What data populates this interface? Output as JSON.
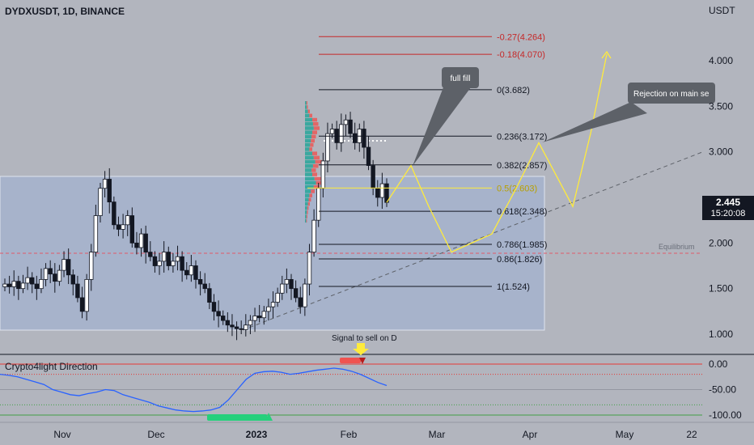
{
  "header": {
    "symbol": "DYDXUSDT, 1D, BINANCE",
    "currency": "USDT"
  },
  "price_label": {
    "price": "2.445",
    "countdown": "15:20:08"
  },
  "colors": {
    "bull": "#26a69a",
    "bear": "#131722",
    "fib_line": "#131722",
    "fib_ext": "#c62828",
    "fib_mid": "#ffeb3b",
    "projection": "#ffeb3b",
    "range_box": "#9fb0d6",
    "osc_line": "#2962ff"
  },
  "indicator": {
    "title": "Crypto4light Direction",
    "ticks": [
      "0.00",
      "-50.00",
      "-100.00"
    ]
  },
  "annotations": {
    "full_fill": "full fill",
    "rejection": "Rejection on main se",
    "signal": "Signal to sell on D",
    "equilibrium": "Equilibrium"
  },
  "chart_data": {
    "type": "candlestick",
    "y_axis_ticks": [
      "4.000",
      "3.500",
      "3.000",
      "2.000",
      "1.500",
      "1.000"
    ],
    "y_axis_values": [
      4.0,
      3.5,
      3.0,
      2.0,
      1.5,
      1.0
    ],
    "ylim": [
      0.95,
      4.4
    ],
    "x_axis_ticks": [
      "Nov",
      "Dec",
      "2023",
      "Feb",
      "Mar",
      "Apr",
      "May",
      "22"
    ],
    "fib_levels": [
      {
        "label": "-0.27(4.264)",
        "value": 4.264,
        "kind": "ext"
      },
      {
        "label": "-0.18(4.070)",
        "value": 4.07,
        "kind": "ext"
      },
      {
        "label": "0(3.682)",
        "value": 3.682,
        "kind": "main"
      },
      {
        "label": "0.236(3.172)",
        "value": 3.172,
        "kind": "main"
      },
      {
        "label": "0.382(2.857)",
        "value": 2.857,
        "kind": "main"
      },
      {
        "label": "0.5(2.603)",
        "value": 2.603,
        "kind": "mid"
      },
      {
        "label": "0.618(2.348)",
        "value": 2.348,
        "kind": "main"
      },
      {
        "label": "0.786(1.985)",
        "value": 1.985,
        "kind": "main"
      },
      {
        "label": "0.86(1.826)",
        "value": 1.826,
        "kind": "main"
      },
      {
        "label": "1(1.524)",
        "value": 1.524,
        "kind": "main"
      }
    ],
    "closes": [
      1.55,
      1.52,
      1.58,
      1.5,
      1.56,
      1.62,
      1.55,
      1.5,
      1.6,
      1.72,
      1.66,
      1.58,
      1.7,
      1.82,
      1.65,
      1.55,
      1.4,
      1.25,
      1.6,
      1.9,
      2.3,
      2.6,
      2.7,
      2.45,
      2.2,
      2.15,
      2.2,
      2.3,
      2.0,
      1.95,
      2.1,
      1.9,
      1.85,
      1.75,
      1.8,
      1.9,
      1.75,
      1.8,
      1.85,
      1.7,
      1.65,
      1.75,
      1.6,
      1.55,
      1.5,
      1.35,
      1.25,
      1.2,
      1.15,
      1.1,
      1.08,
      1.06,
      1.05,
      1.1,
      1.15,
      1.2,
      1.18,
      1.25,
      1.3,
      1.35,
      1.45,
      1.55,
      1.6,
      1.5,
      1.4,
      1.3,
      1.55,
      1.9,
      2.25,
      2.6,
      2.9,
      3.2,
      3.25,
      3.1,
      3.3,
      3.35,
      3.2,
      3.1,
      3.25,
      3.05,
      2.85,
      2.6,
      2.5,
      2.65,
      2.445
    ],
    "volume_profile": [
      0.1,
      0.12,
      0.2,
      0.3,
      0.5,
      0.55,
      0.6,
      0.5,
      0.45,
      0.4,
      0.35,
      0.3,
      0.5,
      0.6,
      0.7,
      0.55,
      0.45,
      0.5,
      0.65,
      0.75,
      0.6,
      0.4,
      0.3,
      0.25,
      0.2,
      0.15,
      0.12,
      0.1,
      0.08
    ],
    "projection_path": [
      2.445,
      2.85,
      2.4,
      1.9,
      2.1,
      2.6,
      3.1,
      2.4,
      3.2,
      4.07
    ],
    "oscillator": [
      -20,
      -22,
      -25,
      -30,
      -35,
      -40,
      -50,
      -55,
      -60,
      -62,
      -58,
      -55,
      -50,
      -52,
      -60,
      -65,
      -70,
      -75,
      -82,
      -86,
      -90,
      -92,
      -93,
      -92,
      -90,
      -85,
      -70,
      -50,
      -30,
      -18,
      -15,
      -14,
      -16,
      -20,
      -18,
      -15,
      -12,
      -10,
      -8,
      -10,
      -14,
      -20,
      -28,
      -36,
      -42
    ]
  }
}
